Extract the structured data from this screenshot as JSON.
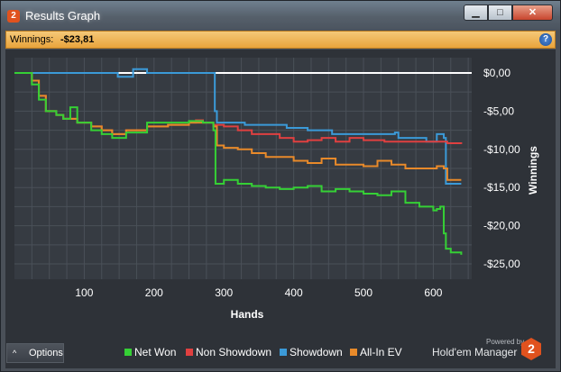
{
  "window": {
    "title": "Results Graph",
    "app_icon_text": "2",
    "minimize_glyph": "▁",
    "maximize_glyph": "□",
    "close_glyph": "✕"
  },
  "winnings_bar": {
    "label": "Winnings:",
    "value": "-$23,81",
    "help_icon": "?"
  },
  "options_button": {
    "label": "Options",
    "chevron": "^"
  },
  "legend": [
    {
      "label": "Net Won",
      "color": "#35d035"
    },
    {
      "label": "Non Showdown",
      "color": "#e04040"
    },
    {
      "label": "Showdown",
      "color": "#3b9ad8"
    },
    {
      "label": "All-In EV",
      "color": "#e88a2a"
    }
  ],
  "branding": {
    "powered_by": "Powered by",
    "name": "Hold'em Manager",
    "logo_text": "2"
  },
  "chart_data": {
    "type": "line",
    "xlabel": "Hands",
    "ylabel": "Winnings",
    "xlim": [
      0,
      655
    ],
    "ylim": [
      -27,
      2
    ],
    "x_ticks": [
      100,
      200,
      300,
      400,
      500,
      600
    ],
    "y_ticks": [
      0,
      -5,
      -10,
      -15,
      -20,
      -25
    ],
    "y_tick_labels": [
      "$0,00",
      "-$5,00",
      "-$10,00",
      "-$15,00",
      "-$20,00",
      "-$25,00"
    ],
    "grid": true,
    "zero_line": true,
    "series": [
      {
        "name": "Showdown",
        "color": "#3b9ad8",
        "points": [
          [
            0,
            0
          ],
          [
            145,
            0
          ],
          [
            148,
            -0.5
          ],
          [
            165,
            -0.5
          ],
          [
            170,
            0.5
          ],
          [
            185,
            0.5
          ],
          [
            190,
            0
          ],
          [
            285,
            0
          ],
          [
            287,
            -5
          ],
          [
            290,
            -6.5
          ],
          [
            310,
            -6.5
          ],
          [
            330,
            -6.8
          ],
          [
            360,
            -6.8
          ],
          [
            390,
            -7.2
          ],
          [
            420,
            -7.5
          ],
          [
            450,
            -7.5
          ],
          [
            455,
            -8
          ],
          [
            500,
            -8
          ],
          [
            530,
            -8
          ],
          [
            545,
            -7.8
          ],
          [
            550,
            -8.5
          ],
          [
            570,
            -8.5
          ],
          [
            590,
            -9
          ],
          [
            605,
            -8
          ],
          [
            615,
            -8.5
          ],
          [
            618,
            -14.5
          ],
          [
            640,
            -14.5
          ]
        ]
      },
      {
        "name": "Non Showdown",
        "color": "#e04040",
        "points": [
          [
            0,
            0
          ],
          [
            15,
            0
          ],
          [
            25,
            -1
          ],
          [
            35,
            -3
          ],
          [
            45,
            -5
          ],
          [
            60,
            -5.5
          ],
          [
            70,
            -6
          ],
          [
            90,
            -6.5
          ],
          [
            110,
            -7
          ],
          [
            125,
            -7.5
          ],
          [
            140,
            -8
          ],
          [
            160,
            -7.5
          ],
          [
            190,
            -7
          ],
          [
            220,
            -6.8
          ],
          [
            250,
            -6.5
          ],
          [
            260,
            -6.2
          ],
          [
            270,
            -6.5
          ],
          [
            285,
            -6.8
          ],
          [
            300,
            -7
          ],
          [
            320,
            -7.5
          ],
          [
            340,
            -8
          ],
          [
            360,
            -8
          ],
          [
            380,
            -8.5
          ],
          [
            400,
            -9
          ],
          [
            420,
            -8.8
          ],
          [
            440,
            -8.5
          ],
          [
            460,
            -9
          ],
          [
            480,
            -8.5
          ],
          [
            500,
            -8.8
          ],
          [
            530,
            -9
          ],
          [
            560,
            -9
          ],
          [
            600,
            -9
          ],
          [
            620,
            -9.2
          ],
          [
            640,
            -9.3
          ]
        ]
      },
      {
        "name": "All-In EV",
        "color": "#e88a2a",
        "points": [
          [
            0,
            0
          ],
          [
            15,
            0
          ],
          [
            25,
            -1
          ],
          [
            35,
            -3
          ],
          [
            45,
            -5
          ],
          [
            60,
            -5.5
          ],
          [
            70,
            -6
          ],
          [
            90,
            -6.5
          ],
          [
            110,
            -7
          ],
          [
            125,
            -7.5
          ],
          [
            140,
            -8
          ],
          [
            160,
            -7.5
          ],
          [
            190,
            -7
          ],
          [
            220,
            -6.8
          ],
          [
            250,
            -6.5
          ],
          [
            270,
            -6.5
          ],
          [
            285,
            -7
          ],
          [
            290,
            -9.5
          ],
          [
            300,
            -9.8
          ],
          [
            320,
            -10
          ],
          [
            340,
            -10.5
          ],
          [
            360,
            -11
          ],
          [
            380,
            -11
          ],
          [
            400,
            -11.5
          ],
          [
            420,
            -11.8
          ],
          [
            440,
            -11.2
          ],
          [
            460,
            -12
          ],
          [
            480,
            -12
          ],
          [
            500,
            -12.2
          ],
          [
            520,
            -11.5
          ],
          [
            540,
            -12
          ],
          [
            560,
            -12.5
          ],
          [
            590,
            -12.5
          ],
          [
            605,
            -12.2
          ],
          [
            615,
            -12.5
          ],
          [
            620,
            -14
          ],
          [
            640,
            -14
          ]
        ]
      },
      {
        "name": "Net Won",
        "color": "#35d035",
        "points": [
          [
            0,
            0
          ],
          [
            15,
            0
          ],
          [
            25,
            -1.5
          ],
          [
            35,
            -3.5
          ],
          [
            45,
            -5
          ],
          [
            60,
            -5.5
          ],
          [
            70,
            -6
          ],
          [
            80,
            -4.5
          ],
          [
            90,
            -6.5
          ],
          [
            110,
            -7.5
          ],
          [
            125,
            -8
          ],
          [
            140,
            -8.5
          ],
          [
            160,
            -7.8
          ],
          [
            190,
            -6.5
          ],
          [
            220,
            -6.5
          ],
          [
            250,
            -6.3
          ],
          [
            270,
            -6.5
          ],
          [
            285,
            -7.5
          ],
          [
            288,
            -14.5
          ],
          [
            300,
            -14
          ],
          [
            320,
            -14.5
          ],
          [
            340,
            -14.8
          ],
          [
            360,
            -15
          ],
          [
            380,
            -15.2
          ],
          [
            400,
            -15
          ],
          [
            420,
            -14.8
          ],
          [
            440,
            -15.5
          ],
          [
            460,
            -15.2
          ],
          [
            480,
            -15.5
          ],
          [
            500,
            -15.8
          ],
          [
            520,
            -16
          ],
          [
            540,
            -15.5
          ],
          [
            560,
            -17
          ],
          [
            580,
            -17.5
          ],
          [
            600,
            -18
          ],
          [
            605,
            -17.8
          ],
          [
            610,
            -17.5
          ],
          [
            615,
            -21
          ],
          [
            618,
            -23
          ],
          [
            625,
            -23.5
          ],
          [
            640,
            -23.8
          ]
        ]
      }
    ]
  }
}
